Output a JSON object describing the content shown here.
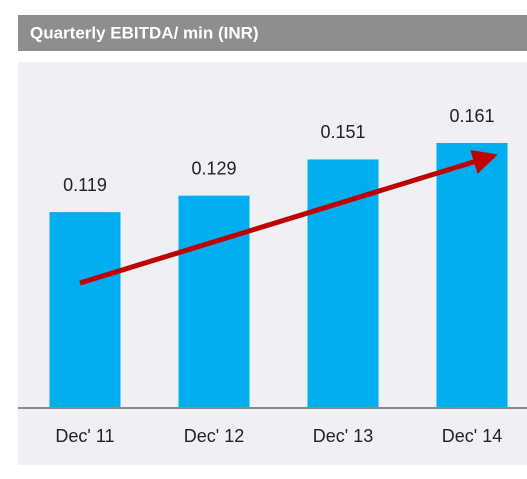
{
  "chart_data": {
    "type": "bar",
    "title": "Quarterly EBITDA/ min (INR)",
    "categories": [
      "Dec' 11",
      "Dec' 12",
      "Dec' 13",
      "Dec' 14"
    ],
    "values": [
      0.119,
      0.129,
      0.151,
      0.161
    ],
    "color": "#00aeef"
  }
}
